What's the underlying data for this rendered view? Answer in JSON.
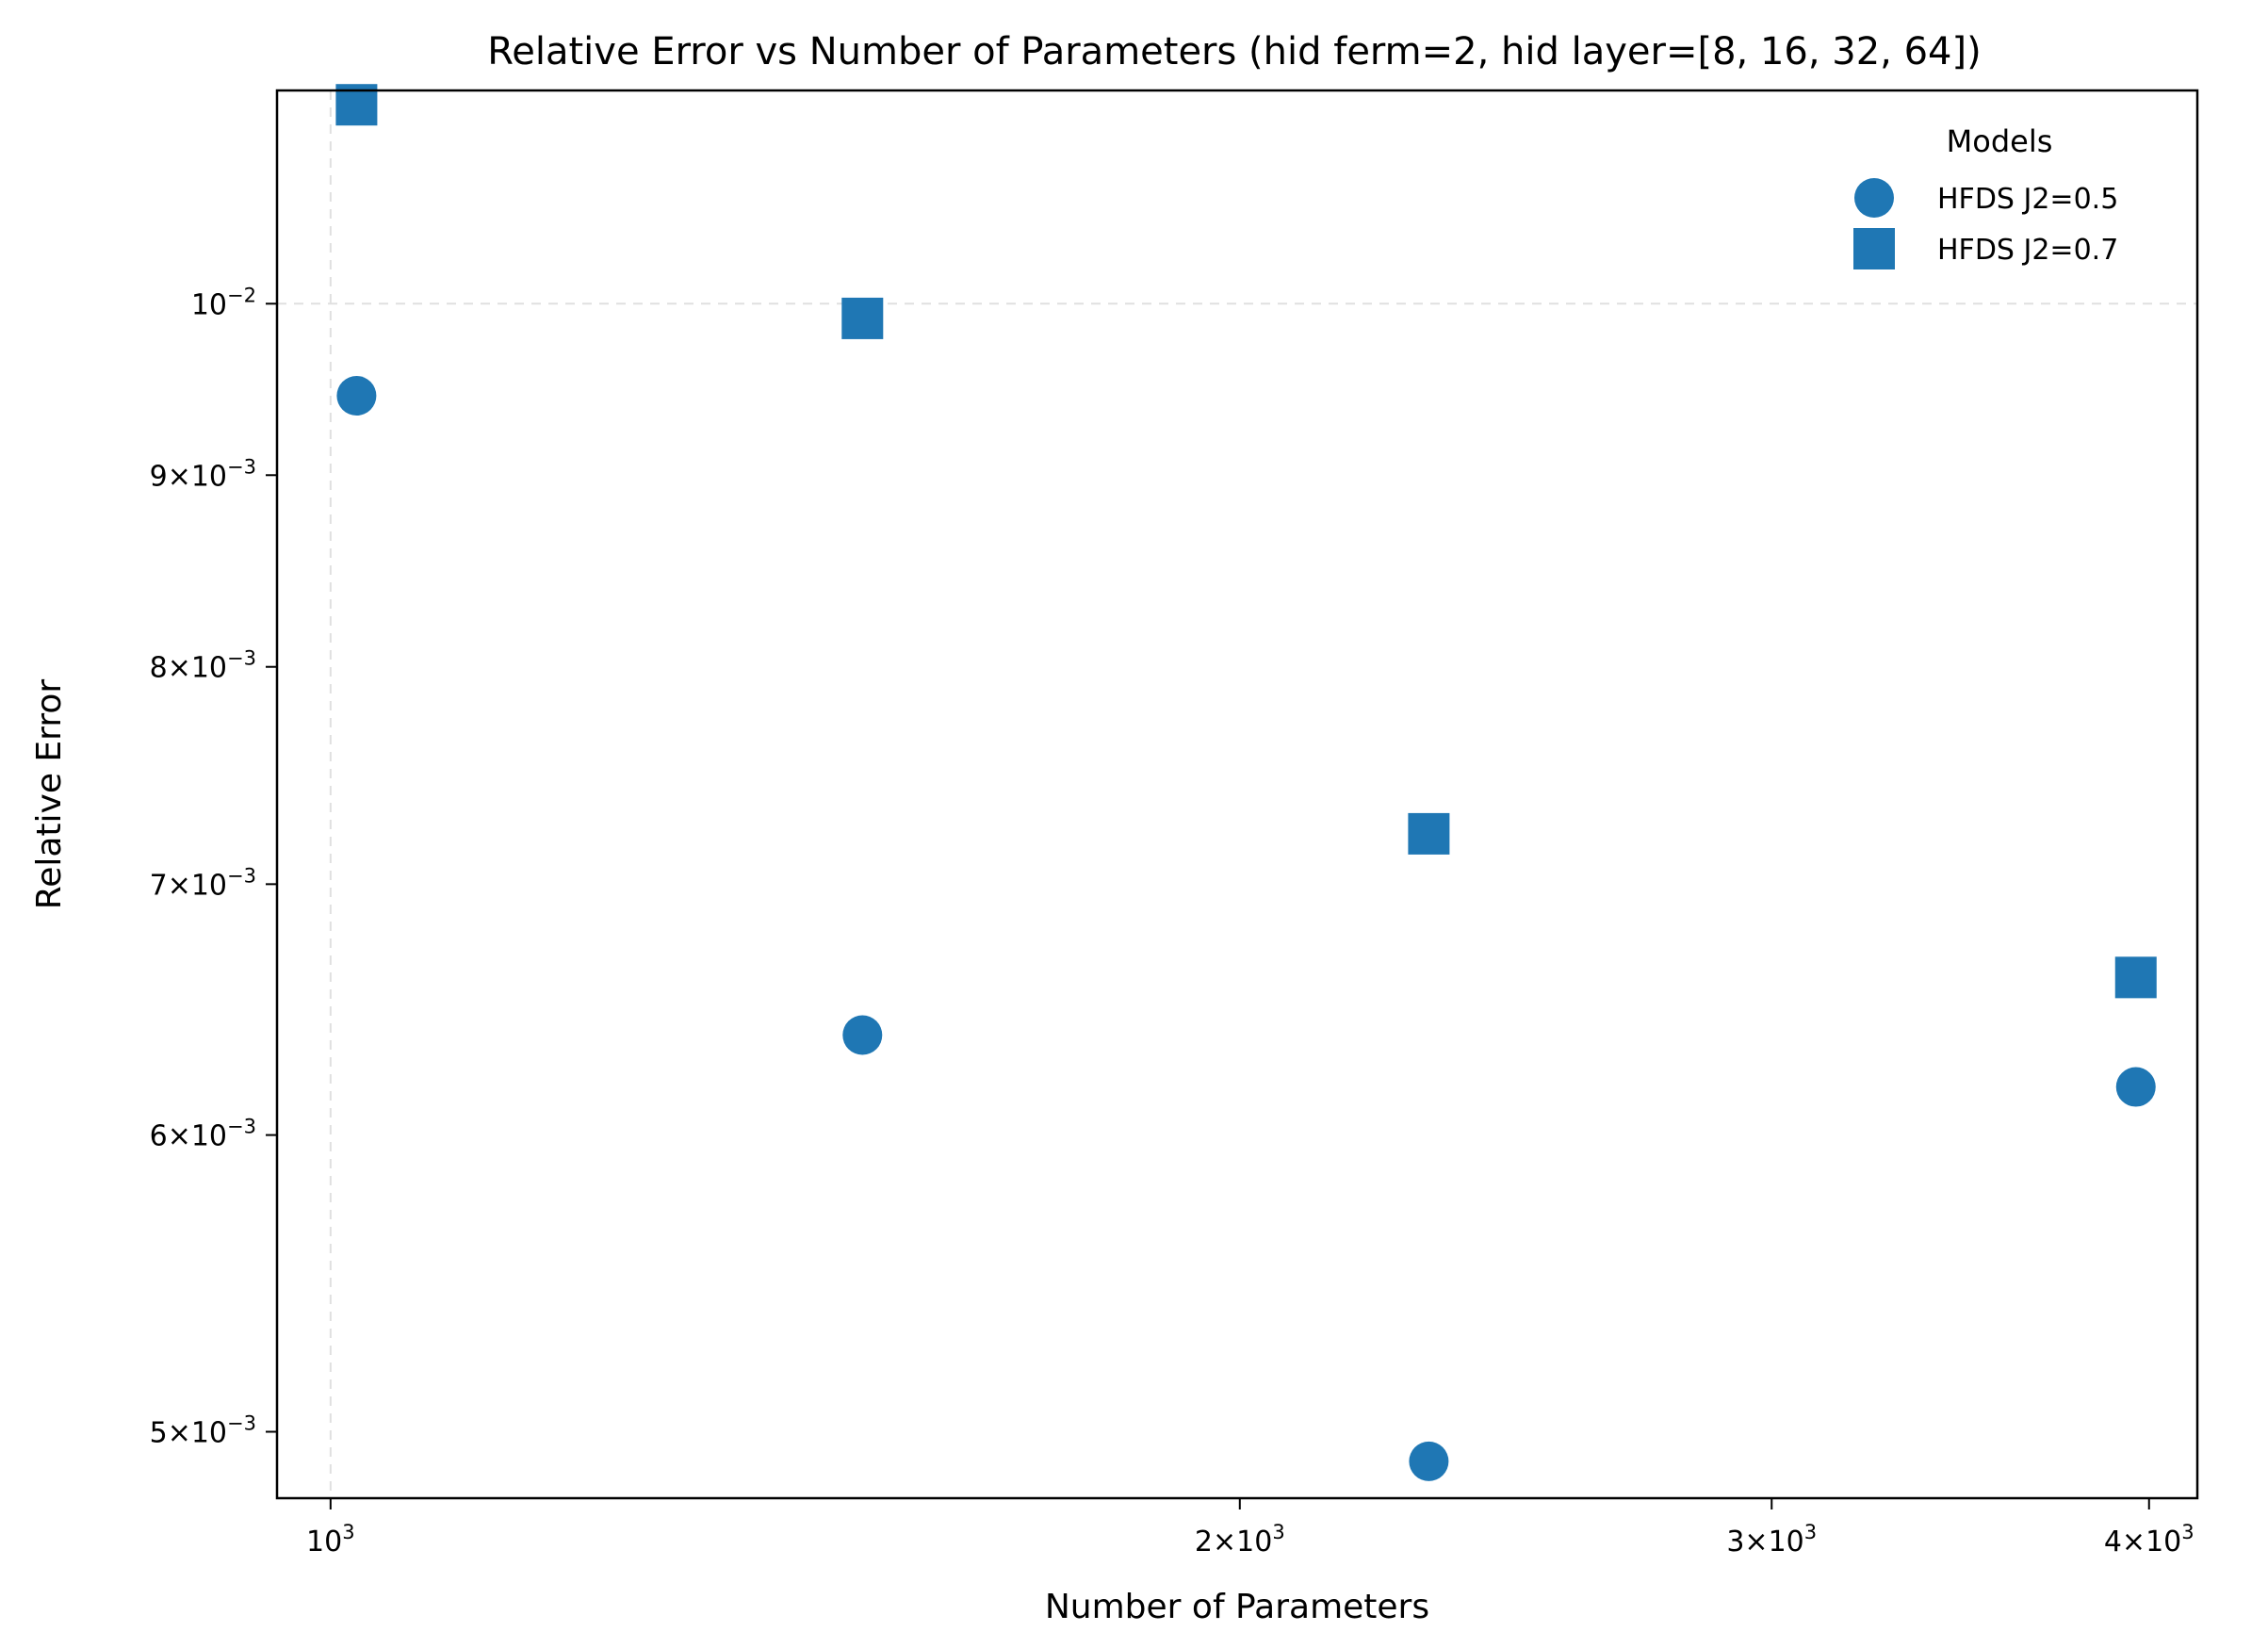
{
  "chart_data": {
    "type": "scatter",
    "title": "Relative Error vs Number of Parameters (hid ferm=2, hid layer=[8, 16, 32, 64])",
    "xlabel": "Number of Parameters",
    "ylabel": "Relative Error",
    "xscale": "log",
    "yscale": "log",
    "xlim": [
      960,
      4150
    ],
    "ylim": [
      0.0048,
      0.0114
    ],
    "grid": "dashed",
    "x_ticks": [
      {
        "value": 1000,
        "base": "10",
        "exp": "3",
        "mult": ""
      },
      {
        "value": 2000,
        "base": "10",
        "exp": "3",
        "mult": "2"
      },
      {
        "value": 3000,
        "base": "10",
        "exp": "3",
        "mult": "3"
      },
      {
        "value": 4000,
        "base": "10",
        "exp": "3",
        "mult": "4"
      }
    ],
    "y_ticks": [
      {
        "value": 0.005,
        "base": "10",
        "exp": "−3",
        "mult": "5"
      },
      {
        "value": 0.006,
        "base": "10",
        "exp": "−3",
        "mult": "6"
      },
      {
        "value": 0.007,
        "base": "10",
        "exp": "−3",
        "mult": "7"
      },
      {
        "value": 0.008,
        "base": "10",
        "exp": "−3",
        "mult": "8"
      },
      {
        "value": 0.009,
        "base": "10",
        "exp": "−3",
        "mult": "9"
      },
      {
        "value": 0.01,
        "base": "10",
        "exp": "−2",
        "mult": ""
      }
    ],
    "legend": {
      "title": "Models",
      "position": "top-right"
    },
    "series": [
      {
        "name": "HFDS J2=0.5",
        "marker": "circle",
        "color": "#1f77b4",
        "x": [
          1020,
          1500,
          2310,
          3960
        ],
        "y": [
          0.00945,
          0.00638,
          0.00491,
          0.00618
        ]
      },
      {
        "name": "HFDS J2=0.7",
        "marker": "square",
        "color": "#1f77b4",
        "x": [
          1020,
          1500,
          2310,
          3960
        ],
        "y": [
          0.0113,
          0.00991,
          0.00722,
          0.00661
        ]
      }
    ]
  }
}
